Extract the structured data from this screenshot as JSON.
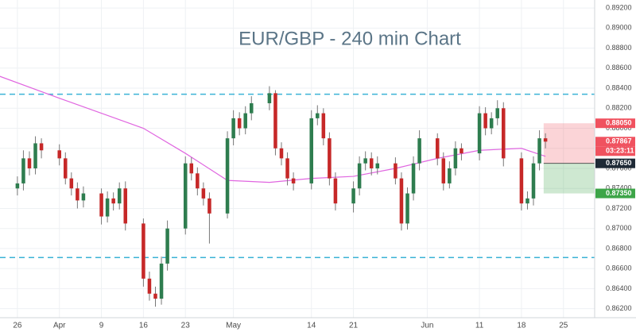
{
  "chart_data": {
    "type": "candlestick",
    "title": "EUR/GBP - 240 min Chart",
    "x": [
      0,
      1,
      2,
      3,
      4,
      7,
      8,
      9,
      10,
      11,
      14,
      15,
      16,
      17,
      18,
      21,
      22,
      23,
      24,
      25,
      28,
      29,
      30,
      31,
      32,
      35,
      36,
      37,
      38,
      39,
      42,
      43,
      44,
      45,
      46,
      49,
      50,
      51,
      52,
      53,
      56,
      57,
      58,
      59,
      60,
      63,
      64,
      65,
      66,
      67,
      70,
      71,
      72,
      73,
      74,
      77,
      78,
      79,
      80,
      81,
      84,
      85,
      86,
      87,
      88
    ],
    "open": [
      0.874,
      0.8745,
      0.877,
      0.876,
      0.8785,
      0.8778,
      0.877,
      0.875,
      0.874,
      0.8728,
      0.8735,
      0.8712,
      0.873,
      0.8725,
      0.874,
      0.8705,
      0.865,
      0.8635,
      0.863,
      0.8665,
      0.87,
      0.8765,
      0.8755,
      0.874,
      0.873,
      0.8715,
      0.879,
      0.881,
      0.88,
      0.8815,
      0.8825,
      0.8835,
      0.878,
      0.877,
      0.875,
      0.8745,
      0.881,
      0.8815,
      0.879,
      0.875,
      0.8725,
      0.874,
      0.8765,
      0.877,
      0.876,
      0.8765,
      0.875,
      0.8705,
      0.8735,
      0.8765,
      0.879,
      0.877,
      0.8745,
      0.876,
      0.878,
      0.8775,
      0.8815,
      0.88,
      0.881,
      0.882,
      0.877,
      0.8725,
      0.873,
      0.8765,
      0.879
    ],
    "high": [
      0.8752,
      0.8778,
      0.8777,
      0.8792,
      0.879,
      0.8784,
      0.8776,
      0.8756,
      0.8746,
      0.8742,
      0.874,
      0.8737,
      0.8736,
      0.8746,
      0.8747,
      0.871,
      0.8657,
      0.8642,
      0.8672,
      0.8708,
      0.8772,
      0.8771,
      0.8761,
      0.8746,
      0.8736,
      0.8797,
      0.8818,
      0.8816,
      0.8822,
      0.8832,
      0.8842,
      0.8838,
      0.8786,
      0.8776,
      0.8756,
      0.8818,
      0.8823,
      0.882,
      0.8796,
      0.8756,
      0.8747,
      0.8772,
      0.8777,
      0.8776,
      0.8772,
      0.8771,
      0.8756,
      0.8741,
      0.8772,
      0.8798,
      0.8795,
      0.8776,
      0.8767,
      0.8787,
      0.8785,
      0.8822,
      0.8821,
      0.8816,
      0.8828,
      0.8826,
      0.8776,
      0.8737,
      0.8772,
      0.8798,
      0.8795
    ],
    "low": [
      0.8733,
      0.8738,
      0.8753,
      0.8754,
      0.877,
      0.8763,
      0.8744,
      0.8733,
      0.872,
      0.8721,
      0.8704,
      0.8706,
      0.8718,
      0.8719,
      0.8698,
      0.8642,
      0.8628,
      0.8622,
      0.8624,
      0.8658,
      0.8694,
      0.8748,
      0.8733,
      0.8723,
      0.8685,
      0.871,
      0.8783,
      0.8793,
      0.8794,
      0.8808,
      0.8818,
      0.8773,
      0.8763,
      0.8743,
      0.8738,
      0.8739,
      0.8803,
      0.8783,
      0.8743,
      0.8718,
      0.8716,
      0.8733,
      0.8758,
      0.8753,
      0.8754,
      0.8744,
      0.8698,
      0.8699,
      0.8728,
      0.8758,
      0.8763,
      0.8738,
      0.874,
      0.8753,
      0.8768,
      0.8768,
      0.8793,
      0.8794,
      0.8803,
      0.8762,
      0.8718,
      0.8719,
      0.8723,
      0.8758,
      0.878
    ],
    "close": [
      0.8745,
      0.877,
      0.876,
      0.8785,
      0.8778,
      0.877,
      0.875,
      0.874,
      0.8728,
      0.8735,
      0.8712,
      0.873,
      0.8725,
      0.874,
      0.8705,
      0.865,
      0.8635,
      0.863,
      0.8665,
      0.87,
      0.8765,
      0.8755,
      0.874,
      0.873,
      0.8715,
      0.879,
      0.881,
      0.88,
      0.8815,
      0.8825,
      0.8835,
      0.878,
      0.877,
      0.875,
      0.8745,
      0.881,
      0.8815,
      0.879,
      0.875,
      0.8725,
      0.874,
      0.8765,
      0.877,
      0.876,
      0.8765,
      0.875,
      0.8705,
      0.8735,
      0.8765,
      0.879,
      0.877,
      0.8745,
      0.876,
      0.878,
      0.8775,
      0.8815,
      0.88,
      0.881,
      0.882,
      0.877,
      0.8725,
      0.873,
      0.8765,
      0.879,
      0.87867
    ],
    "up_color": "#2e7d4f",
    "down_color": "#c62828",
    "moving_average": {
      "color": "#e066e0",
      "x": [
        -3,
        7,
        21,
        28,
        35,
        42,
        49,
        56,
        63,
        70,
        77,
        84,
        88
      ],
      "values": [
        0.8852,
        0.883,
        0.88,
        0.8775,
        0.8748,
        0.8746,
        0.875,
        0.8752,
        0.876,
        0.877,
        0.8778,
        0.878,
        0.8772
      ]
    },
    "levels": [
      {
        "value": 0.8834,
        "color": "#3bb3d6"
      },
      {
        "value": 0.8671,
        "color": "#3bb3d6"
      }
    ],
    "position": {
      "x_start": 87.7,
      "stop": {
        "value": 0.8805,
        "label": "0.88050",
        "color": "#f0525f"
      },
      "entry": {
        "value": 0.8765,
        "label": "0.87650",
        "color": "#1e2a36"
      },
      "target": {
        "value": 0.8735,
        "label": "0.87350",
        "color": "#3da548"
      }
    },
    "current_color": "#f0525f",
    "countdown": "03:23:11",
    "xlim": [
      -2.9,
      96.2
    ],
    "ylim": [
      0.8611,
      0.8928
    ],
    "grid": true,
    "yticks": [
      {
        "value": 0.862,
        "label": "0.86200"
      },
      {
        "value": 0.864,
        "label": "0.86400"
      },
      {
        "value": 0.866,
        "label": "0.86600"
      },
      {
        "value": 0.868,
        "label": "0.86800"
      },
      {
        "value": 0.87,
        "label": "0.87000"
      },
      {
        "value": 0.872,
        "label": "0.87200"
      },
      {
        "value": 0.874,
        "label": "0.87400"
      },
      {
        "value": 0.876,
        "label": "0.87600"
      },
      {
        "value": 0.878,
        "label": "0.87800"
      },
      {
        "value": 0.88,
        "label": "0.88000"
      },
      {
        "value": 0.882,
        "label": "0.88200"
      },
      {
        "value": 0.884,
        "label": "0.88400"
      },
      {
        "value": 0.886,
        "label": "0.88600"
      },
      {
        "value": 0.888,
        "label": "0.88800"
      },
      {
        "value": 0.89,
        "label": "0.89000"
      },
      {
        "value": 0.892,
        "label": "0.89200"
      }
    ],
    "xticks": [
      {
        "value": 0,
        "label": "26"
      },
      {
        "value": 7,
        "label": "Apr"
      },
      {
        "value": 14,
        "label": "9"
      },
      {
        "value": 21,
        "label": "16"
      },
      {
        "value": 28,
        "label": "23"
      },
      {
        "value": 36,
        "label": "May"
      },
      {
        "value": 49,
        "label": "14"
      },
      {
        "value": 56,
        "label": "21"
      },
      {
        "value": 68.3,
        "label": "Jun"
      },
      {
        "value": 77,
        "label": "11"
      },
      {
        "value": 84,
        "label": "18"
      },
      {
        "value": 91,
        "label": "25"
      }
    ]
  }
}
